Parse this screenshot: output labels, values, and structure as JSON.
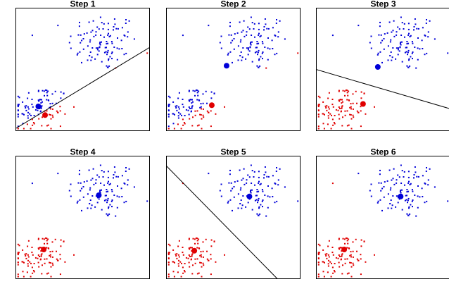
{
  "chart_data": {
    "type": "scatter",
    "description_units": "x and y in data units 0-10 (axes hidden)",
    "axes_visible": false,
    "xlim": [
      0,
      10
    ],
    "ylim": [
      0,
      10
    ],
    "colors": {
      "cluster_a": "#0000d8",
      "cluster_b": "#e00000",
      "line": "#000000"
    },
    "clusters": {
      "top_right": {
        "center": [
          6.5,
          7.2
        ],
        "spread": [
          1.3,
          1.2
        ],
        "n": 110
      },
      "bottom_left": {
        "center": [
          1.8,
          1.8
        ],
        "spread": [
          1.1,
          1.0
        ],
        "n": 110
      }
    },
    "panels": [
      {
        "title": "Step 1",
        "line": [
          [
            0,
            0.2
          ],
          [
            10,
            6.8
          ]
        ],
        "centroids": {
          "blue": [
            1.7,
            2.0
          ],
          "red": [
            2.2,
            1.3
          ]
        },
        "assignment": "line"
      },
      {
        "title": "Step 2",
        "line": null,
        "centroids": {
          "blue": [
            4.5,
            5.3
          ],
          "red": [
            3.4,
            2.1
          ]
        },
        "assignment": "line1"
      },
      {
        "title": "Step 3",
        "line": [
          [
            0,
            5.0
          ],
          [
            10,
            1.8
          ]
        ],
        "centroids": {
          "blue": [
            4.6,
            5.2
          ],
          "red": [
            3.5,
            2.2
          ]
        },
        "assignment": "line"
      },
      {
        "title": "Step 4",
        "line": null,
        "centroids": {
          "blue": [
            6.2,
            6.8
          ],
          "red": [
            2.1,
            2.4
          ]
        },
        "assignment": "line3"
      },
      {
        "title": "Step 5",
        "line": [
          [
            0,
            9.2
          ],
          [
            8.3,
            0
          ]
        ],
        "centroids": {
          "blue": [
            6.2,
            6.7
          ],
          "red": [
            2.1,
            2.3
          ]
        },
        "assignment": "line"
      },
      {
        "title": "Step 6",
        "line": null,
        "centroids": {
          "blue": [
            6.3,
            6.7
          ],
          "red": [
            2.1,
            2.4
          ]
        },
        "assignment": "line5"
      }
    ]
  }
}
